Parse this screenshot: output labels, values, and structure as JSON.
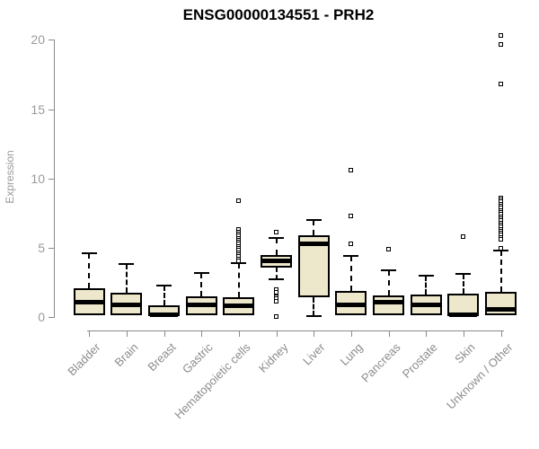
{
  "title": "ENSG00000134551 - PRH2",
  "y_axis_label": "Expression",
  "colors": {
    "background": "#ffffff",
    "box_fill": "#EDE8CC",
    "box_border": "#000000",
    "axis_line": "#8a8a8a",
    "y_tick_label": "#9a9a9a",
    "category_label": "#8c8c8c",
    "title_color": "#000000"
  },
  "chart_data": {
    "type": "boxplot",
    "title": "ENSG00000134551 - PRH2",
    "xlabel": "",
    "ylabel": "Expression",
    "ylim": [
      0,
      20.5
    ],
    "yticks": [
      0,
      5,
      10,
      15,
      20
    ],
    "grid": false,
    "legend": "none",
    "categories": [
      "Bladder",
      "Brain",
      "Breast",
      "Gastric",
      "Hematopoietic cells",
      "Kidney",
      "Liver",
      "Lung",
      "Pancreas",
      "Prostate",
      "Skin",
      "Unknown / Other"
    ],
    "series": [
      {
        "name": "Bladder",
        "whisker_low": 0.05,
        "q1": 0.1,
        "median": 1.1,
        "q3": 2.1,
        "whisker_high": 4.6,
        "outliers": []
      },
      {
        "name": "Brain",
        "whisker_low": 0.05,
        "q1": 0.1,
        "median": 0.9,
        "q3": 1.75,
        "whisker_high": 3.8,
        "outliers": []
      },
      {
        "name": "Breast",
        "whisker_low": 0.0,
        "q1": 0.05,
        "median": 0.15,
        "q3": 0.85,
        "whisker_high": 2.3,
        "outliers": []
      },
      {
        "name": "Gastric",
        "whisker_low": 0.05,
        "q1": 0.1,
        "median": 0.9,
        "q3": 1.5,
        "whisker_high": 3.2,
        "outliers": []
      },
      {
        "name": "Hematopoietic cells",
        "whisker_low": 0.0,
        "q1": 0.1,
        "median": 0.8,
        "q3": 1.4,
        "whisker_high": 3.9,
        "outliers": [
          8.4,
          6.3,
          6.15,
          6.0,
          5.85,
          5.7,
          5.55,
          5.4,
          5.25,
          5.1,
          4.95,
          4.8,
          4.65,
          4.5,
          4.35,
          4.2,
          4.05
        ]
      },
      {
        "name": "Kidney",
        "whisker_low": 2.7,
        "q1": 3.55,
        "median": 4.05,
        "q3": 4.5,
        "whisker_high": 5.7,
        "outliers": [
          6.1,
          2.0,
          1.8,
          1.45,
          1.3,
          1.15,
          0.05
        ]
      },
      {
        "name": "Liver",
        "whisker_low": 0.05,
        "q1": 1.4,
        "median": 5.25,
        "q3": 5.9,
        "whisker_high": 7.0,
        "outliers": []
      },
      {
        "name": "Lung",
        "whisker_low": 0.05,
        "q1": 0.15,
        "median": 0.85,
        "q3": 1.9,
        "whisker_high": 4.4,
        "outliers": [
          10.6,
          7.3,
          5.3
        ]
      },
      {
        "name": "Pancreas",
        "whisker_low": 0.05,
        "q1": 0.15,
        "median": 1.05,
        "q3": 1.55,
        "whisker_high": 3.4,
        "outliers": [
          4.9
        ]
      },
      {
        "name": "Prostate",
        "whisker_low": 0.05,
        "q1": 0.1,
        "median": 0.9,
        "q3": 1.6,
        "whisker_high": 3.0,
        "outliers": []
      },
      {
        "name": "Skin",
        "whisker_low": 0.0,
        "q1": 0.05,
        "median": 0.15,
        "q3": 1.7,
        "whisker_high": 3.1,
        "outliers": [
          5.8
        ]
      },
      {
        "name": "Unknown / Other",
        "whisker_low": 0.05,
        "q1": 0.1,
        "median": 0.55,
        "q3": 1.8,
        "whisker_high": 4.8,
        "outliers": [
          20.3,
          19.7,
          16.8,
          8.6,
          8.45,
          8.3,
          8.15,
          8.0,
          7.85,
          7.7,
          7.55,
          7.4,
          7.25,
          7.1,
          6.95,
          6.8,
          6.65,
          6.5,
          6.35,
          6.2,
          6.05,
          5.9,
          5.75,
          5.6,
          4.95
        ]
      }
    ]
  }
}
